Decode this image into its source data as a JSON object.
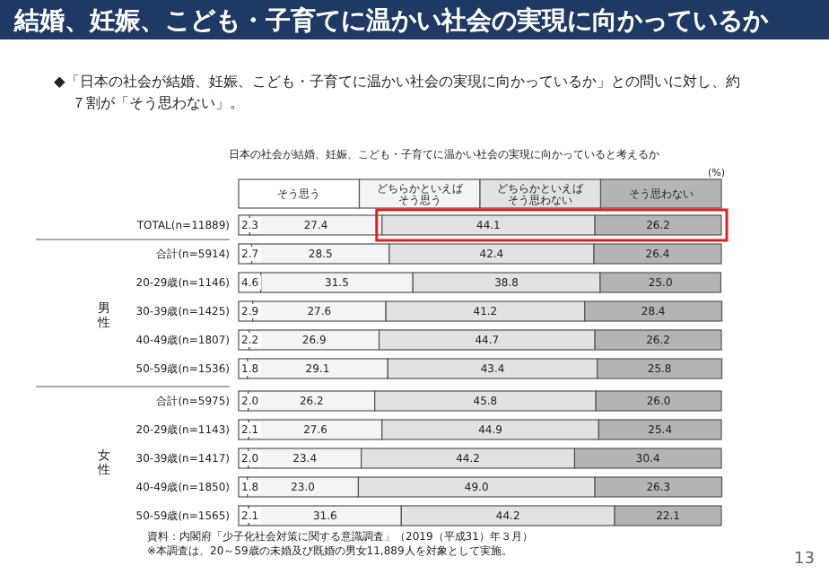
{
  "chart_data": {
    "type": "bar",
    "orientation": "horizontal",
    "stacked": true,
    "title": "結婚、妊娠、こども・子育てに温かい社会の実現に向かっているか",
    "subtitle": "◆「日本の社会が結婚、妊娠、こども・子育てに温かい社会の実現に向かっているか」との問いに対し、約７割が「そう思わない」。",
    "xlabel": "(%)",
    "categories": [
      "TOTAL(n=11889)",
      "合計(n=5914)",
      "20-29歳(n=1146)",
      "30-39歳(n=1425)",
      "40-49歳(n=1807)",
      "50-59歳(n=1536)",
      "合計(n=5975)",
      "20-29歳(n=1143)",
      "30-39歳(n=1417)",
      "40-49歳(n=1850)",
      "50-59歳(n=1565)"
    ],
    "xlim": [
      0,
      100
    ],
    "series": [
      {
        "name": "そう思う",
        "color": "#ffffff",
        "values": [
          2.3,
          2.7,
          4.6,
          2.9,
          2.2,
          1.8,
          2.0,
          2.1,
          2.0,
          1.8,
          2.1
        ],
        "value_labels": [
          "2.3",
          "2.7",
          "4.6",
          "2.9",
          "2.2",
          "1.8",
          "2.0",
          "2.1",
          "2.0",
          "1.8",
          "2.1"
        ]
      },
      {
        "name": "どちらかといえばそう思う",
        "color": "#f4f4f4",
        "values": [
          27.4,
          28.5,
          31.5,
          27.6,
          26.9,
          29.1,
          26.2,
          27.6,
          23.4,
          23.0,
          31.6
        ],
        "value_labels": [
          "27.4",
          "28.5",
          "31.5",
          "27.6",
          "26.9",
          "29.1",
          "26.2",
          "27.6",
          "23.4",
          "23.0",
          "31.6"
        ]
      },
      {
        "name": "どちらかといえばそう思わない",
        "color": "#e2e2e2",
        "values": [
          44.1,
          42.4,
          38.8,
          41.2,
          44.7,
          43.4,
          45.8,
          44.9,
          44.2,
          49.0,
          44.2
        ],
        "value_labels": [
          "44.1",
          "42.4",
          "38.8",
          "41.2",
          "44.7",
          "43.4",
          "45.8",
          "44.9",
          "44.2",
          "49.0",
          "44.2"
        ]
      },
      {
        "name": "そう思わない",
        "color": "#b4b4b4",
        "values": [
          26.2,
          26.4,
          25.0,
          28.4,
          26.2,
          25.8,
          26.0,
          25.4,
          30.4,
          26.3,
          22.1
        ],
        "value_labels": [
          "26.2",
          "26.4",
          "25.0",
          "28.4",
          "26.2",
          "25.8",
          "26.0",
          "25.4",
          "30.4",
          "26.3",
          "22.1"
        ]
      }
    ],
    "legend": "top",
    "annotations": [
      "日本の社会が結婚、妊娠、こども・子育てに温かい社会の実現に向かっていると考えるか",
      "男性",
      "女性",
      "資料：内閣府「少子化社会対策に関する意識調査」（2019（平成31）年３月）",
      "※本調査は、20～59歳の未婚及び既婚の男女11,889人を対象として実施。",
      "13"
    ]
  }
}
